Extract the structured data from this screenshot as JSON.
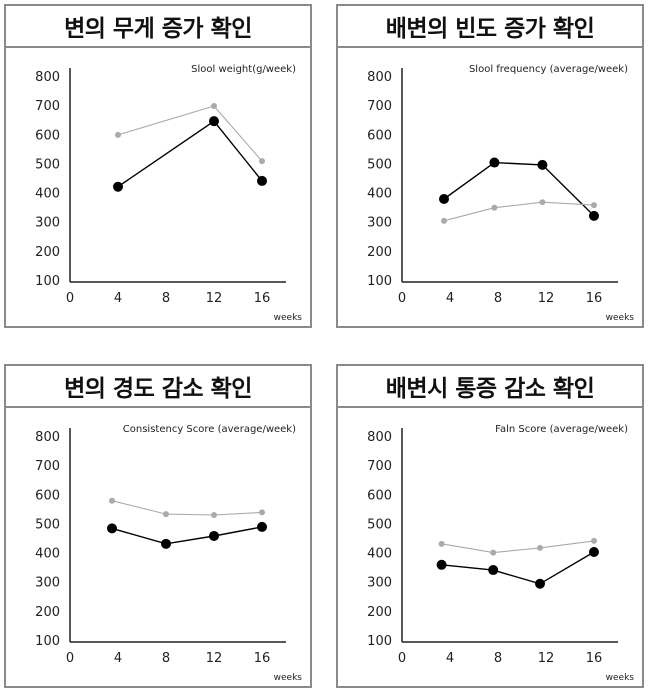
{
  "colors": {
    "treatment": "#000000",
    "control": "#aaaaaa",
    "axis": "#222222",
    "border": "#8a8a8a"
  },
  "chart_data": [
    {
      "type": "line",
      "title": "변의 무게 증가 확인",
      "subtitle": "Slool weight(g/week)",
      "xlabel": "weeks",
      "ylabel": "",
      "xlim": [
        0,
        18
      ],
      "ylim": [
        100,
        800
      ],
      "x_ticks": [
        "0",
        "4",
        "8",
        "12",
        "16"
      ],
      "y_ticks": [
        "100",
        "200",
        "300",
        "400",
        "500",
        "600",
        "700",
        "800"
      ],
      "series": [
        {
          "style": "black-large",
          "x": [
            4,
            12,
            16
          ],
          "values": [
            420,
            645,
            440
          ]
        },
        {
          "style": "gray-small",
          "x": [
            4,
            12,
            16
          ],
          "values": [
            598,
            697,
            508
          ]
        }
      ]
    },
    {
      "type": "line",
      "title": "배변의 빈도 증가 확인",
      "subtitle": "Slool frequency (average/week)",
      "xlabel": "weeks",
      "ylabel": "",
      "xlim": [
        0,
        18
      ],
      "ylim": [
        100,
        800
      ],
      "x_ticks": [
        "0",
        "4",
        "8",
        "12",
        "16"
      ],
      "y_ticks": [
        "100",
        "200",
        "300",
        "400",
        "500",
        "600",
        "700",
        "800"
      ],
      "series": [
        {
          "style": "black-large",
          "x": [
            3.5,
            7.7,
            11.7,
            16
          ],
          "values": [
            378,
            503,
            495,
            320
          ]
        },
        {
          "style": "gray-small",
          "x": [
            3.5,
            7.7,
            11.7,
            16
          ],
          "values": [
            303,
            348,
            367,
            357
          ]
        }
      ]
    },
    {
      "type": "line",
      "title": "변의 경도 감소 확인",
      "subtitle": "Consistency Score (average/week)",
      "xlabel": "weeks",
      "ylabel": "",
      "xlim": [
        0,
        18
      ],
      "ylim": [
        100,
        800
      ],
      "x_ticks": [
        "0",
        "4",
        "8",
        "12",
        "16"
      ],
      "y_ticks": [
        "100",
        "200",
        "300",
        "400",
        "500",
        "600",
        "700",
        "800"
      ],
      "series": [
        {
          "style": "black-large",
          "x": [
            3.5,
            8,
            12,
            16
          ],
          "values": [
            483,
            430,
            457,
            488
          ]
        },
        {
          "style": "gray-small",
          "x": [
            3.5,
            8,
            12,
            16
          ],
          "values": [
            578,
            532,
            529,
            538
          ]
        }
      ]
    },
    {
      "type": "line",
      "title": "배변시 통증 감소 확인",
      "subtitle": "Faln Score (average/week)",
      "xlabel": "weeks",
      "ylabel": "",
      "xlim": [
        0,
        18
      ],
      "ylim": [
        100,
        800
      ],
      "x_ticks": [
        "0",
        "4",
        "8",
        "12",
        "16"
      ],
      "y_ticks": [
        "100",
        "200",
        "300",
        "400",
        "500",
        "600",
        "700",
        "800"
      ],
      "series": [
        {
          "style": "black-large",
          "x": [
            3.3,
            7.6,
            11.5,
            16
          ],
          "values": [
            358,
            340,
            293,
            402
          ]
        },
        {
          "style": "gray-small",
          "x": [
            3.3,
            7.6,
            11.5,
            16
          ],
          "values": [
            430,
            400,
            416,
            440
          ]
        }
      ]
    }
  ]
}
